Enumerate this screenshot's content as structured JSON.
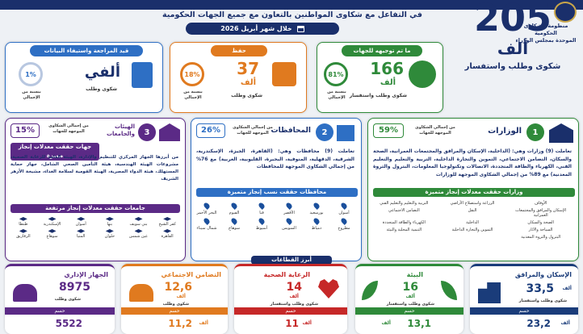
{
  "header": {
    "org_line1": "منظومة الشكاوى الحكومية",
    "org_line2": "الموحدة بمجلس الوزراء",
    "subtitle": "في التفاعل مع شكاوى المواطنين بالتعاون مع جميع الجهات الحكومية",
    "month": "خلال شهر أبريل 2026"
  },
  "total": {
    "number": "205",
    "unit": "ألف",
    "label": "شكوى وطلب واستفسار"
  },
  "status": {
    "directed": {
      "title": "ما تم توجيهه للجهات",
      "number": "166",
      "unit": "ألف",
      "label": "شكوى وطلب واستفسار",
      "pct": "81%",
      "pct_value": 81,
      "pct_label": "بنسبة من الإجمالي"
    },
    "saved": {
      "title": "حفظ",
      "number": "37",
      "unit": "ألف",
      "label": "شكوى وطلب",
      "pct": "18%",
      "pct_value": 18,
      "pct_label": "بنسبة من الإجمالي"
    },
    "review": {
      "title": "قيد المراجعة واستيفاء البيانات",
      "number": "ألفي",
      "label": "شكوى وطلب",
      "pct": "1%",
      "pct_value": 1,
      "pct_label": "بنسبة من الإجمالي"
    }
  },
  "ministries": {
    "index": "1",
    "title": "الوزارات",
    "pct": "59%",
    "pct_label": "من إجمالي الشكاوى الموجهة للجهات",
    "text": "تعاملت (9) وزارات وهي: (الداخلية، الإسكان والمرافق والمجتمعات العمرانية، الصحة والسكان، التضامن الاجتماعي، التموين والتجارة الداخلية، التربية والتعليم والتعليم الفني، الكهرباء والطاقة المتجددة، الاتصالات وتكنولوجيا المعلومات، البترول والثروة المعدنية) مع 89% من إجمالي الشكاوى الموجهة للوزارات",
    "banner": "وزارات حققت معدلات إنجاز متميزة",
    "items": [
      "الأوقاف",
      "الزراعة واستصلاح الأراضي",
      "التربية والتعليم والتعليم الفني",
      "الإسكان والمرافق والمجتمعات العمرانية",
      "النقل",
      "التضامن الاجتماعي",
      "الصحة والسكان",
      "الداخلية",
      "الكهرباء والطاقة المتجددة",
      "السياحة والآثار",
      "التموين والتجارة الداخلية",
      "التنمية المحلية والبيئة",
      "البترول والثروة المعدنية"
    ]
  },
  "governorates": {
    "index": "2",
    "title": "المحافظات",
    "pct": "26%",
    "pct_label": "من إجمالي الشكاوى الموجهة للجهات",
    "text": "تعاملت (9) محافظات وهي: (القاهرة، الجيزة، الإسكندرية، الشرقية، الدقهلية، المنوفية، البحيرة، القليوبية، الغربية) مع 76% من إجمالي الشكاوى الموجهة للمحافظات",
    "banner": "محافظات حققت نسب إنجاز متميزة",
    "items": [
      "أسوان",
      "بورسعيد",
      "الأقصر",
      "قنا",
      "الفيوم",
      "البحر الأحمر",
      "مطروح",
      "دمياط",
      "السويس",
      "أسيوط",
      "سوهاج",
      "شمال سيناء"
    ]
  },
  "bodies": {
    "index": "3",
    "title": "الهيئات والجامعات",
    "pct": "15%",
    "pct_label": "من إجمالي الشكاوى الموجهة للجهات",
    "text": "من أبرزها الجهاز المركزي للتنظيم والإدارة، الهيئة العامة للرعاية الصحية، مشروعات الهيئة الهندسية، هيئة التأمين الصحي الشامل، جهاز حماية المستهلك، هيئة الدواء المصرية، الهيئة القومية لسلامة الغذاء، مشيخة الأزهر الشريف",
    "banner1": "جهات حققت معدلات إنجاز مميزة",
    "banner2": "جامعات حققت معدلات إنجاز مرتفعة",
    "items": [
      "كفر الشيخ",
      "بني سويف",
      "بنها",
      "أسوان",
      "الإسكندرية",
      "طنطا",
      "القاهرة",
      "عين شمس",
      "حلوان",
      "المنيا",
      "سوهاج",
      "الزقازيق"
    ]
  },
  "sectors": {
    "title": "أبرز القطاعات",
    "unit": "ألف",
    "solved_label": "حسم",
    "items": [
      {
        "name": "الإسكان والمرافق",
        "number": "33,5",
        "unit": "ألف",
        "label": "شكوى وطلب واستفسار",
        "solved": "23,2",
        "solved_unit": "ألف",
        "color": "#1a3c7a"
      },
      {
        "name": "البيئة",
        "number": "16",
        "unit": "ألف",
        "label": "شكوى وطلب واستفسار",
        "solved": "13,1",
        "solved_unit": "ألف",
        "color": "#2f8a3a"
      },
      {
        "name": "الرعاية الصحية",
        "number": "14",
        "unit": "ألف",
        "label": "شكوى وطلب واستفسار",
        "solved": "11",
        "solved_unit": "ألف",
        "color": "#c62828"
      },
      {
        "name": "التضامن الاجتماعي",
        "number": "12,6",
        "unit": "ألف",
        "label": "شكوى وطلب",
        "solved": "11,2",
        "solved_unit": "ألف",
        "color": "#e07a1f"
      },
      {
        "name": "الجهاز الإداري",
        "number": "8975",
        "unit": "",
        "label": "شكوى وطلب",
        "solved": "5522",
        "solved_unit": "",
        "color": "#5b2a86"
      }
    ]
  },
  "colors": {
    "navy": "#1a2f6b",
    "green": "#2f8a3a",
    "orange": "#e07a1f",
    "blue": "#2e6fc4",
    "purple": "#5b2a86",
    "red": "#c62828"
  }
}
